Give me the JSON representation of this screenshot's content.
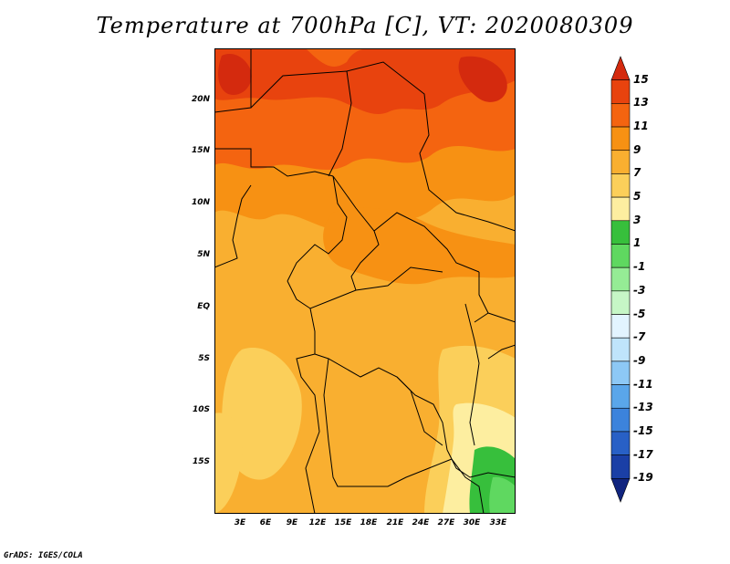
{
  "title": "Temperature at 700hPa [C], VT: 2020080309",
  "credit": "GrADS: IGES/COLA",
  "map": {
    "lat_ticks": [
      "20N",
      "15N",
      "10N",
      "5N",
      "EQ",
      "5S",
      "10S",
      "15S"
    ],
    "lon_ticks": [
      "3E",
      "6E",
      "9E",
      "12E",
      "15E",
      "18E",
      "21E",
      "24E",
      "27E",
      "30E",
      "33E"
    ]
  },
  "colorbar": {
    "labels": [
      "15",
      "13",
      "11",
      "9",
      "7",
      "5",
      "3",
      "1",
      "-1",
      "-3",
      "-5",
      "-7",
      "-9",
      "-11",
      "-13",
      "-15",
      "-17",
      "-19"
    ],
    "colors": [
      "#d42a0e",
      "#e8430e",
      "#f46410",
      "#f79113",
      "#f9af30",
      "#fbcf5a",
      "#fdeea0",
      "#37bf3c",
      "#5fd860",
      "#95ec95",
      "#c6f6c6",
      "#e2f4ff",
      "#bfe4fb",
      "#8dc8f5",
      "#5aa6ea",
      "#3c83dc",
      "#2860c6",
      "#1a3fa6",
      "#10247f"
    ]
  }
}
